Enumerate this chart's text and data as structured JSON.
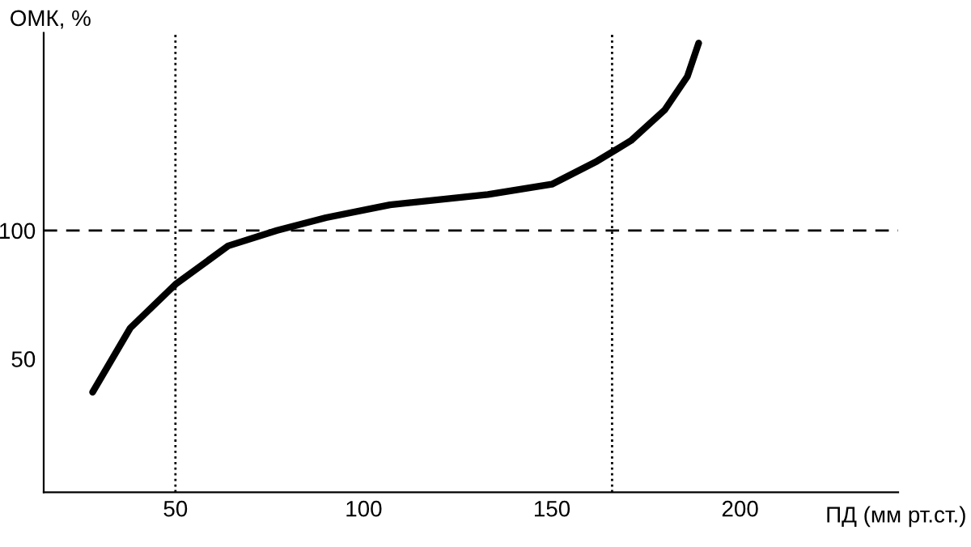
{
  "chart_data": {
    "type": "line",
    "xlabel": "ПД (мм рт.ст.)",
    "ylabel": "ОМК, %",
    "x": [
      28,
      38,
      50,
      64,
      77,
      90,
      107,
      133,
      150,
      162,
      171,
      180,
      186,
      189
    ],
    "series": [
      {
        "color": "#000000",
        "values": [
          37,
          62,
          79,
          94,
          100,
          105,
          110,
          114,
          118,
          127,
          135,
          147,
          160,
          173
        ]
      }
    ],
    "xlim": [
      15,
      242
    ],
    "ylim": [
      -2,
      177
    ],
    "xticks": [
      50,
      100,
      150,
      200
    ],
    "yticks": [
      50,
      100
    ],
    "ref_lines": [
      {
        "axis": "x",
        "value": 50,
        "line_style": "dotted",
        "color": "#000000"
      },
      {
        "axis": "x",
        "value": 166,
        "line_style": "dotted",
        "color": "#000000"
      },
      {
        "axis": "y",
        "value": 100,
        "line_style": "dashed",
        "color": "#000000"
      }
    ],
    "grid": false,
    "marker": "none",
    "line_style": "solid"
  }
}
